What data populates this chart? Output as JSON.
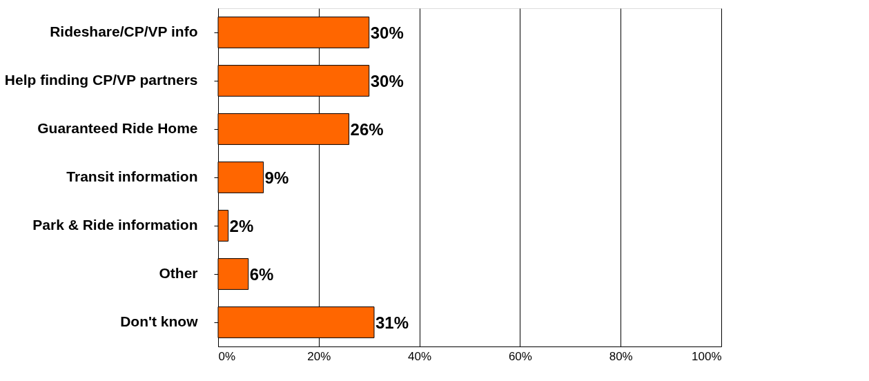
{
  "chart_data": {
    "type": "bar",
    "orientation": "horizontal",
    "categories": [
      "Rideshare/CP/VP info",
      "Help finding CP/VP partners",
      "Guaranteed Ride Home",
      "Transit information",
      "Park & Ride information",
      "Other",
      "Don't know"
    ],
    "values": [
      30,
      30,
      26,
      9,
      2,
      6,
      31
    ],
    "value_labels": [
      "30%",
      "30%",
      "26%",
      "9%",
      "2%",
      "6%",
      "31%"
    ],
    "color": "#ff6600",
    "xlim": [
      0,
      100
    ],
    "xticks": [
      {
        "value": 0,
        "label": "0%"
      },
      {
        "value": 20,
        "label": "20%"
      },
      {
        "value": 40,
        "label": "40%"
      },
      {
        "value": 60,
        "label": "60%"
      },
      {
        "value": 80,
        "label": "80%"
      },
      {
        "value": 100,
        "label": "100%"
      }
    ],
    "grid": "x"
  }
}
